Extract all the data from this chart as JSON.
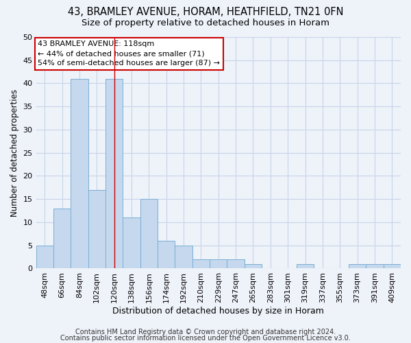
{
  "title1": "43, BRAMLEY AVENUE, HORAM, HEATHFIELD, TN21 0FN",
  "title2": "Size of property relative to detached houses in Horam",
  "xlabel": "Distribution of detached houses by size in Horam",
  "ylabel": "Number of detached properties",
  "categories": [
    "48sqm",
    "66sqm",
    "84sqm",
    "102sqm",
    "120sqm",
    "138sqm",
    "156sqm",
    "174sqm",
    "192sqm",
    "210sqm",
    "229sqm",
    "247sqm",
    "265sqm",
    "283sqm",
    "301sqm",
    "319sqm",
    "337sqm",
    "355sqm",
    "373sqm",
    "391sqm",
    "409sqm"
  ],
  "values": [
    5,
    13,
    41,
    17,
    41,
    11,
    15,
    6,
    5,
    2,
    2,
    2,
    1,
    0,
    0,
    1,
    0,
    0,
    1,
    1,
    1
  ],
  "bar_color": "#c5d8ee",
  "bar_edge_color": "#7aafd4",
  "grid_color": "#c8d4e8",
  "background_color": "#eef2f9",
  "vline_x": 4.0,
  "vline_color": "#cc0000",
  "annotation_text": "43 BRAMLEY AVENUE: 118sqm\n← 44% of detached houses are smaller (71)\n54% of semi-detached houses are larger (87) →",
  "annotation_box_color": "#ffffff",
  "annotation_box_edge": "#cc0000",
  "footer1": "Contains HM Land Registry data © Crown copyright and database right 2024.",
  "footer2": "Contains public sector information licensed under the Open Government Licence v3.0.",
  "ylim": [
    0,
    50
  ],
  "yticks": [
    0,
    5,
    10,
    15,
    20,
    25,
    30,
    35,
    40,
    45,
    50
  ],
  "title1_fontsize": 10.5,
  "title2_fontsize": 9.5,
  "xlabel_fontsize": 9,
  "ylabel_fontsize": 8.5,
  "tick_fontsize": 8,
  "annotation_fontsize": 8,
  "footer_fontsize": 7
}
